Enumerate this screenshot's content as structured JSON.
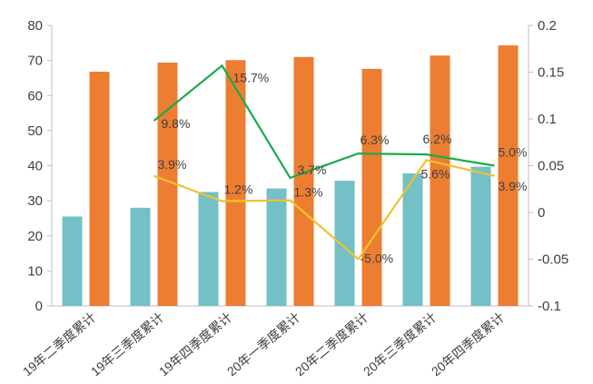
{
  "chart_data": {
    "type": "bar",
    "title": "",
    "categories": [
      "19年二季度累计",
      "19年三季度累计",
      "19年四季度累计",
      "20年一季度累计",
      "20年二季度累计",
      "20年三季度累计",
      "20年四季度累计"
    ],
    "y_left": {
      "ylim": [
        0,
        80
      ],
      "ticks": [
        "0",
        "10",
        "20",
        "30",
        "40",
        "50",
        "60",
        "70",
        "80"
      ]
    },
    "y_right": {
      "ylim": [
        -0.1,
        0.2
      ],
      "ticks": [
        "-0.1",
        "-0.05",
        "0",
        "0.05",
        "0.1",
        "0.15",
        "0.2"
      ]
    },
    "series": [
      {
        "kind": "bar",
        "axis": "left",
        "color": "#73c0c6",
        "values": [
          25.5,
          28,
          32.5,
          33.5,
          35.7,
          37.8,
          39.7
        ]
      },
      {
        "kind": "bar",
        "axis": "left",
        "color": "#ed7d31",
        "values": [
          66.8,
          69.4,
          70.1,
          71,
          67.6,
          71.4,
          74.3
        ]
      },
      {
        "kind": "line",
        "axis": "right",
        "color": "#1aab4b",
        "values": [
          null,
          0.098,
          0.157,
          0.037,
          0.063,
          0.062,
          0.05
        ],
        "labels": [
          "",
          "9.8%",
          "15.7%",
          "3.7%",
          "6.3%",
          "6.2%",
          "5.0%"
        ]
      },
      {
        "kind": "line",
        "axis": "right",
        "color": "#f2c12e",
        "values": [
          null,
          0.039,
          0.012,
          0.013,
          -0.05,
          0.056,
          0.039
        ],
        "labels": [
          "",
          "3.9%",
          "1.2%",
          "1.3%",
          "-5.0%",
          "5.6%",
          "3.9%"
        ]
      }
    ],
    "grid": false,
    "legend": "none"
  }
}
